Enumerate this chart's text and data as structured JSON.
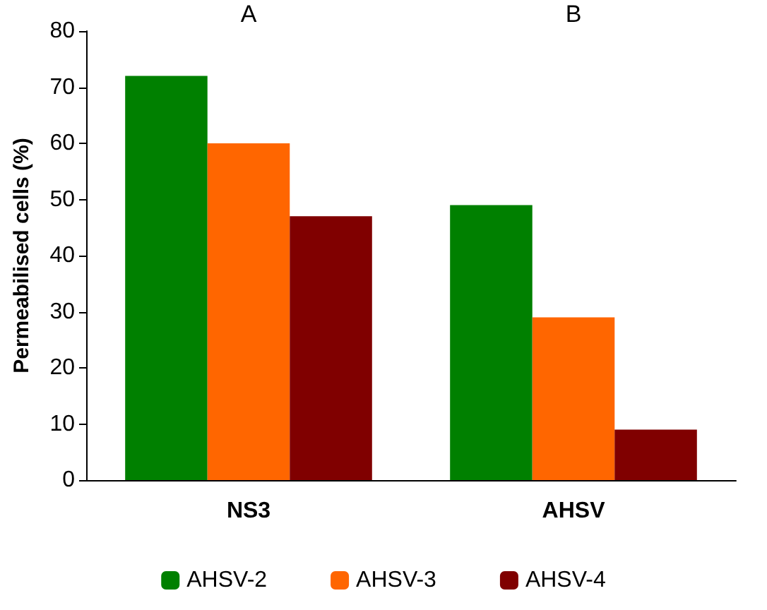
{
  "chart_data": {
    "type": "bar",
    "ylabel": "Permeabilised cells (%)",
    "categories": [
      "NS3",
      "AHSV"
    ],
    "series": [
      {
        "name": "AHSV-2",
        "color": "#008000",
        "values": [
          72,
          49
        ]
      },
      {
        "name": "AHSV-3",
        "color": "#ff6600",
        "values": [
          60,
          29
        ]
      },
      {
        "name": "AHSV-4",
        "color": "#800000",
        "values": [
          47,
          9
        ]
      }
    ],
    "ylim": [
      0,
      80
    ],
    "yticks": [
      0,
      10,
      20,
      30,
      40,
      50,
      60,
      70,
      80
    ],
    "grid": false,
    "legend": "bottom",
    "annotations": [
      "A",
      "B"
    ]
  }
}
